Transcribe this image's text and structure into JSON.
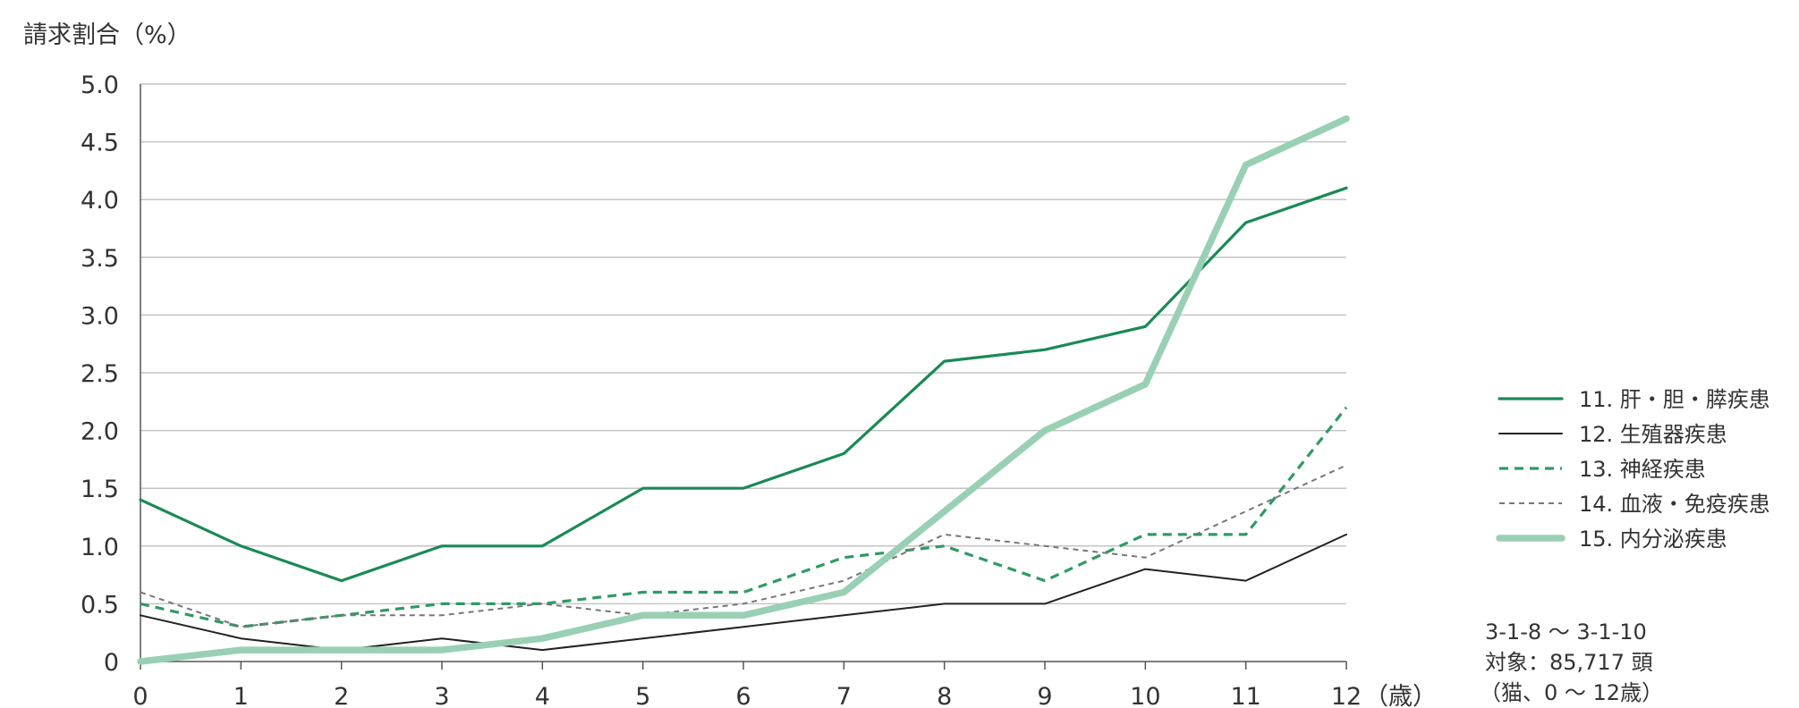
{
  "chart_data": {
    "type": "line",
    "ylabel": "請求割合（%）",
    "x_unit": "（歳）",
    "x": [
      0,
      1,
      2,
      3,
      4,
      5,
      6,
      7,
      8,
      9,
      10,
      11,
      12
    ],
    "x_tick_labels": [
      "0",
      "1",
      "2",
      "3",
      "4",
      "5",
      "6",
      "7",
      "8",
      "9",
      "10",
      "11",
      "12"
    ],
    "y_tick_labels": [
      "0",
      "0.5",
      "1.0",
      "1.5",
      "2.0",
      "2.5",
      "3.0",
      "3.5",
      "4.0",
      "4.5",
      "5.0"
    ],
    "ylim": [
      0,
      5.0
    ],
    "y_ticks": [
      0,
      0.5,
      1.0,
      1.5,
      2.0,
      2.5,
      3.0,
      3.5,
      4.0,
      4.5,
      5.0
    ],
    "grid": true,
    "legend_position": "right",
    "series": [
      {
        "name": "11. 肝・胆・膵疾患",
        "color": "#1a8a55",
        "style": "solid",
        "weight": "normal",
        "values": [
          1.4,
          1.0,
          0.7,
          1.0,
          1.0,
          1.5,
          1.5,
          1.8,
          2.6,
          2.7,
          2.9,
          3.8,
          4.1
        ]
      },
      {
        "name": "12. 生殖器疾患",
        "color": "#222222",
        "style": "solid",
        "weight": "thin",
        "values": [
          0.4,
          0.2,
          0.1,
          0.2,
          0.1,
          0.2,
          0.3,
          0.4,
          0.5,
          0.5,
          0.8,
          0.7,
          1.1
        ]
      },
      {
        "name": "13. 神経疾患",
        "color": "#2e9a63",
        "style": "dashed",
        "weight": "normal",
        "values": [
          0.5,
          0.3,
          0.4,
          0.5,
          0.5,
          0.6,
          0.6,
          0.9,
          1.0,
          0.7,
          1.1,
          1.1,
          2.2
        ]
      },
      {
        "name": "14. 血液・免疫疾患",
        "color": "#777777",
        "style": "dotted",
        "weight": "thin",
        "values": [
          0.6,
          0.3,
          0.4,
          0.4,
          0.5,
          0.4,
          0.5,
          0.7,
          1.1,
          1.0,
          0.9,
          1.3,
          1.7
        ]
      },
      {
        "name": "15. 内分泌疾患",
        "color": "#99d0b4",
        "style": "solid",
        "weight": "thick",
        "values": [
          0.0,
          0.1,
          0.1,
          0.1,
          0.2,
          0.4,
          0.4,
          0.6,
          1.3,
          2.0,
          2.4,
          4.3,
          4.7
        ]
      }
    ]
  },
  "note": {
    "line1": "3-1-8 ～ 3-1-10",
    "line2": "対象：85,717 頭",
    "line3": "（猫、0 ～ 12歳）"
  }
}
